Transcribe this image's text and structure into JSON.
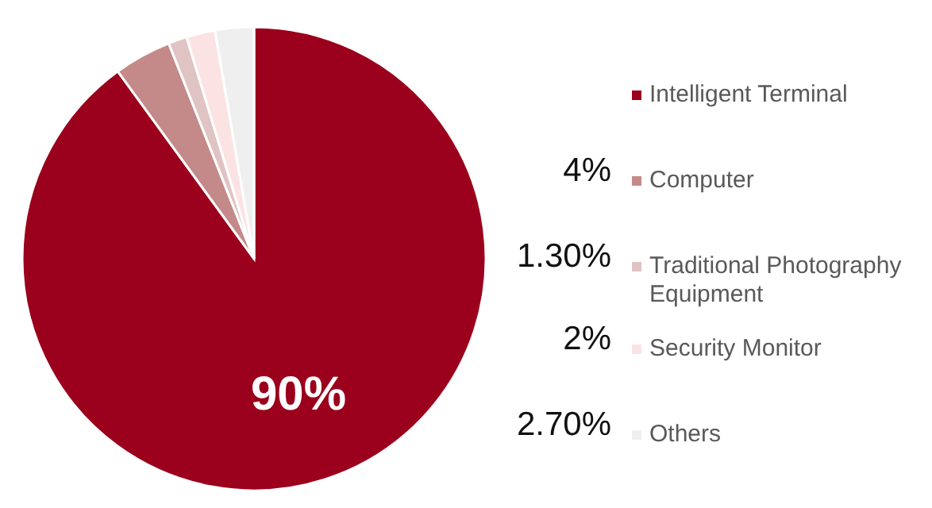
{
  "chart_data": {
    "type": "pie",
    "categories": [
      "Intelligent Terminal",
      "Computer",
      "Traditional Photography Equipment",
      "Security Monitor",
      "Others"
    ],
    "values": [
      90,
      4,
      1.3,
      2,
      2.7
    ],
    "value_labels": [
      "90%",
      "4%",
      "1.30%",
      "2%",
      "2.70%"
    ],
    "colors": [
      "#9b001c",
      "#c48a8a",
      "#e0c3c3",
      "#fce3e3",
      "#efefef"
    ],
    "legend": "right"
  }
}
